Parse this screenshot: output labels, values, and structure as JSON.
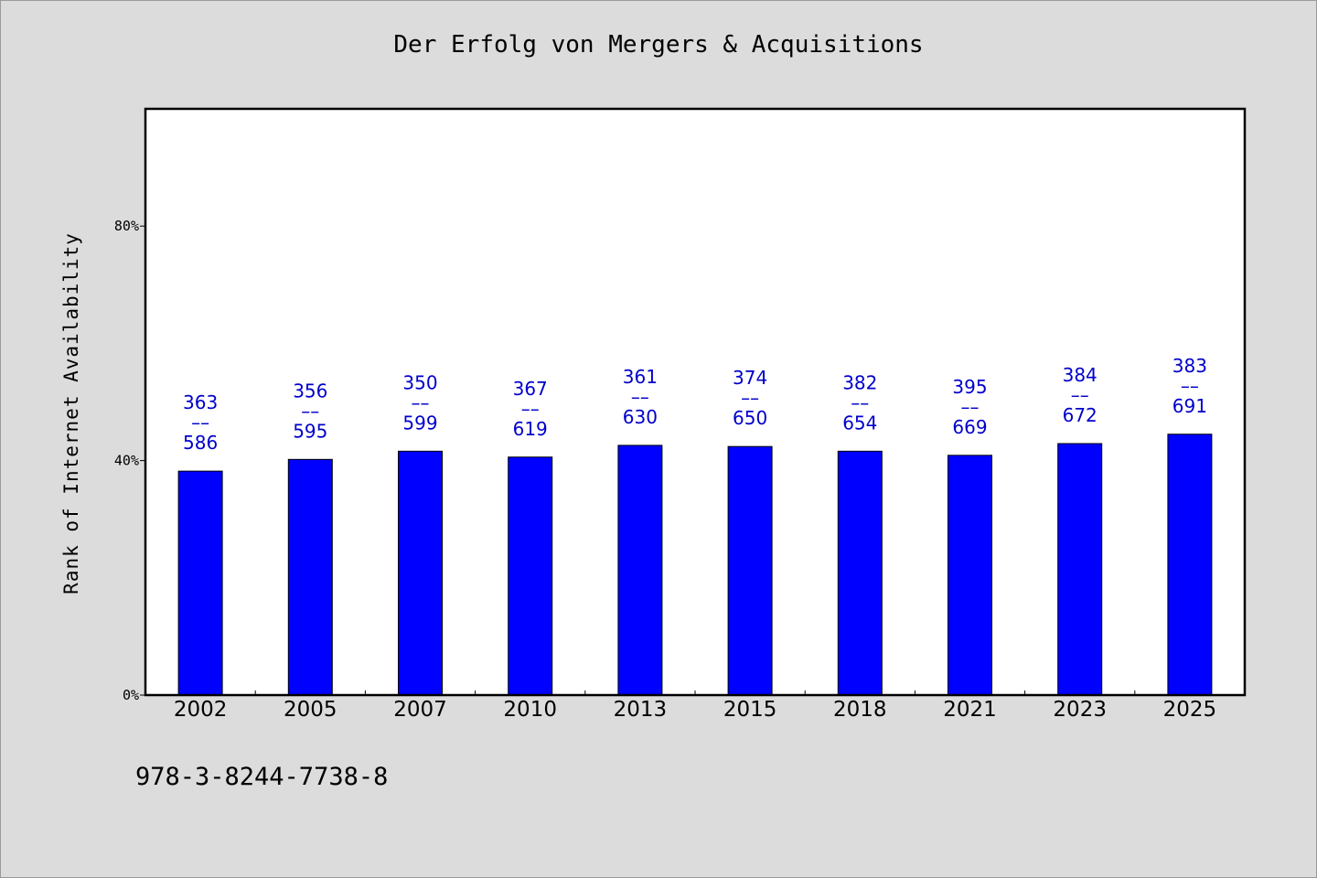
{
  "chart_data": {
    "type": "bar",
    "title": "Der Erfolg von Mergers & Acquisitions",
    "xlabel": "",
    "ylabel": "Rank of Internet Availability",
    "categories": [
      "2002",
      "2005",
      "2007",
      "2010",
      "2013",
      "2015",
      "2018",
      "2021",
      "2023",
      "2025"
    ],
    "values": [
      38.2,
      40.2,
      41.6,
      40.6,
      42.6,
      42.4,
      41.6,
      40.9,
      42.9,
      44.5
    ],
    "data_labels": [
      {
        "top": "363",
        "sep": "––",
        "bottom": "586"
      },
      {
        "top": "356",
        "sep": "––",
        "bottom": "595"
      },
      {
        "top": "350",
        "sep": "––",
        "bottom": "599"
      },
      {
        "top": "367",
        "sep": "––",
        "bottom": "619"
      },
      {
        "top": "361",
        "sep": "––",
        "bottom": "630"
      },
      {
        "top": "374",
        "sep": "––",
        "bottom": "650"
      },
      {
        "top": "382",
        "sep": "––",
        "bottom": "654"
      },
      {
        "top": "395",
        "sep": "––",
        "bottom": "669"
      },
      {
        "top": "384",
        "sep": "––",
        "bottom": "672"
      },
      {
        "top": "383",
        "sep": "––",
        "bottom": "691"
      }
    ],
    "yticks": [
      {
        "value": 0,
        "label": "0%"
      },
      {
        "value": 40,
        "label": "40%"
      },
      {
        "value": 80,
        "label": "80%"
      }
    ],
    "ylim": [
      0,
      100
    ],
    "grid": false,
    "legend": "none",
    "colors": {
      "bar": "#0000ff",
      "label": "#0000cc",
      "page_background": "#dcdcdc",
      "plot_background": "#ffffff"
    }
  },
  "footer": {
    "isbn": "978-3-8244-7738-8"
  }
}
